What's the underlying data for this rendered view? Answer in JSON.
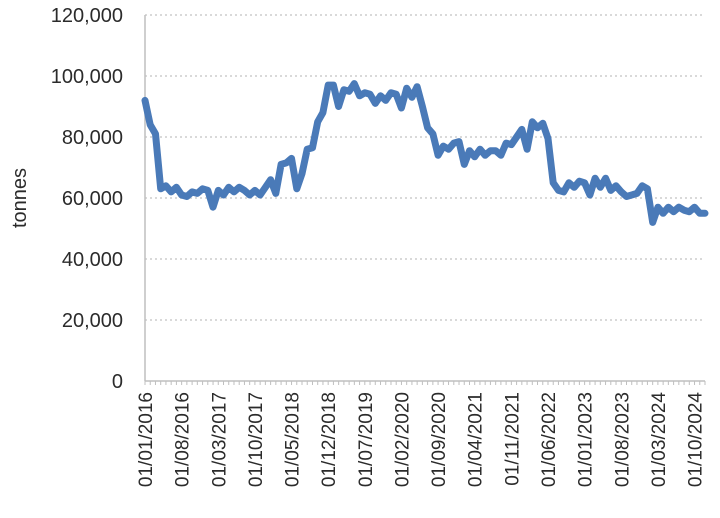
{
  "chart_data": {
    "type": "line",
    "title": "",
    "xlabel": "",
    "ylabel": "tonnes",
    "ylim": [
      0,
      120000
    ],
    "yticks": [
      "0",
      "20,000",
      "40,000",
      "60,000",
      "80,000",
      "100,000",
      "120,000"
    ],
    "grid": "horizontal dotted",
    "legend": "none",
    "x_tick_labels": [
      "01/01/2016",
      "01/08/2016",
      "01/03/2017",
      "01/10/2017",
      "01/05/2018",
      "01/12/2018",
      "01/07/2019",
      "01/02/2020",
      "01/09/2020",
      "01/04/2021",
      "01/11/2021",
      "01/06/2022",
      "01/01/2023",
      "01/08/2023",
      "01/03/2024",
      "01/10/2024"
    ],
    "colors": {
      "line": "#4a7ab8",
      "grid": "#d9d9d9",
      "axis": "#bfbfbf"
    },
    "series": [
      {
        "x": [
          "2016-01",
          "2016-02",
          "2016-03",
          "2016-04",
          "2016-05",
          "2016-06",
          "2016-07",
          "2016-08",
          "2016-09",
          "2016-10",
          "2016-11",
          "2016-12",
          "2017-01",
          "2017-02",
          "2017-03",
          "2017-04",
          "2017-05",
          "2017-06",
          "2017-07",
          "2017-08",
          "2017-09",
          "2017-10",
          "2017-11",
          "2017-12",
          "2018-01",
          "2018-02",
          "2018-03",
          "2018-04",
          "2018-05",
          "2018-06",
          "2018-07",
          "2018-08",
          "2018-09",
          "2018-10",
          "2018-11",
          "2018-12",
          "2019-01",
          "2019-02",
          "2019-03",
          "2019-04",
          "2019-05",
          "2019-06",
          "2019-07",
          "2019-08",
          "2019-09",
          "2019-10",
          "2019-11",
          "2019-12",
          "2020-01",
          "2020-02",
          "2020-03",
          "2020-04",
          "2020-05",
          "2020-06",
          "2020-07",
          "2020-08",
          "2020-09",
          "2020-10",
          "2020-11",
          "2020-12",
          "2021-01",
          "2021-02",
          "2021-03",
          "2021-04",
          "2021-05",
          "2021-06",
          "2021-07",
          "2021-08",
          "2021-09",
          "2021-10",
          "2021-11",
          "2021-12",
          "2022-01",
          "2022-02",
          "2022-03",
          "2022-04",
          "2022-05",
          "2022-06",
          "2022-07",
          "2022-08",
          "2022-09",
          "2022-10",
          "2022-11",
          "2022-12",
          "2023-01",
          "2023-02",
          "2023-03",
          "2023-04",
          "2023-05",
          "2023-06",
          "2023-07",
          "2023-08",
          "2023-09",
          "2023-10",
          "2023-11",
          "2023-12",
          "2024-01",
          "2024-02",
          "2024-03",
          "2024-04",
          "2024-05",
          "2024-06",
          "2024-07",
          "2024-08",
          "2024-09",
          "2024-10",
          "2024-11",
          "2024-12"
        ],
        "values": [
          92000,
          84000,
          81000,
          63000,
          64000,
          62000,
          63500,
          61000,
          60500,
          62000,
          61500,
          63000,
          62500,
          57000,
          62500,
          61000,
          63500,
          62000,
          63500,
          62500,
          61000,
          62500,
          61000,
          63500,
          66000,
          61500,
          71000,
          71500,
          73000,
          63000,
          68000,
          76000,
          76500,
          85000,
          88000,
          97000,
          97000,
          90000,
          95500,
          95000,
          97500,
          93500,
          94500,
          94000,
          91000,
          93500,
          92000,
          94500,
          94000,
          89500,
          96000,
          93000,
          96500,
          90000,
          83000,
          81000,
          74000,
          77000,
          76000,
          78000,
          78500,
          71000,
          75500,
          73500,
          76000,
          74000,
          75500,
          75500,
          74000,
          78000,
          77500,
          80000,
          82500,
          76000,
          85000,
          83000,
          84500,
          79500,
          65000,
          62500,
          62000,
          65000,
          63500,
          65500,
          65000,
          61000,
          66500,
          63500,
          66500,
          62500,
          64000,
          62000,
          60500,
          61000,
          61500,
          64000,
          63000,
          52000,
          57000,
          55000,
          57000,
          55500,
          57000,
          56000,
          55500,
          57000,
          55000,
          55000
        ]
      }
    ]
  }
}
